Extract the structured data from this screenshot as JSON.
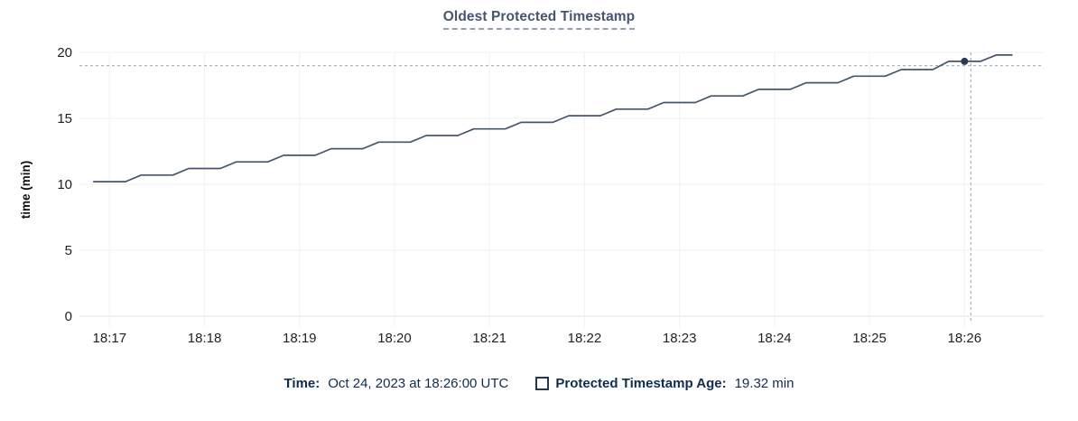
{
  "title": "Oldest Protected Timestamp",
  "chart_data": {
    "type": "line",
    "title": "Oldest Protected Timestamp",
    "xlabel": "",
    "ylabel": "time (min)",
    "ylim": [
      0,
      20
    ],
    "y_ticks": [
      0,
      5,
      10,
      15,
      20
    ],
    "x_ticks": [
      "18:17",
      "18:18",
      "18:19",
      "18:20",
      "18:21",
      "18:22",
      "18:23",
      "18:24",
      "18:25",
      "18:26"
    ],
    "x_domain": [
      "18:16:41",
      "18:26:50"
    ],
    "grid": true,
    "legend_position": "bottom",
    "series": [
      {
        "name": "Protected Timestamp Age",
        "unit": "min",
        "points": [
          [
            "18:16:50",
            10.2
          ],
          [
            "18:17:00",
            10.2
          ],
          [
            "18:17:10",
            10.2
          ],
          [
            "18:17:20",
            10.7
          ],
          [
            "18:17:30",
            10.7
          ],
          [
            "18:17:40",
            10.7
          ],
          [
            "18:17:50",
            11.2
          ],
          [
            "18:18:00",
            11.2
          ],
          [
            "18:18:10",
            11.2
          ],
          [
            "18:18:20",
            11.7
          ],
          [
            "18:18:30",
            11.7
          ],
          [
            "18:18:40",
            11.7
          ],
          [
            "18:18:50",
            12.2
          ],
          [
            "18:19:00",
            12.2
          ],
          [
            "18:19:10",
            12.2
          ],
          [
            "18:19:20",
            12.7
          ],
          [
            "18:19:30",
            12.7
          ],
          [
            "18:19:40",
            12.7
          ],
          [
            "18:19:50",
            13.2
          ],
          [
            "18:20:00",
            13.2
          ],
          [
            "18:20:10",
            13.2
          ],
          [
            "18:20:20",
            13.7
          ],
          [
            "18:20:30",
            13.7
          ],
          [
            "18:20:40",
            13.7
          ],
          [
            "18:20:50",
            14.2
          ],
          [
            "18:21:00",
            14.2
          ],
          [
            "18:21:10",
            14.2
          ],
          [
            "18:21:20",
            14.7
          ],
          [
            "18:21:30",
            14.7
          ],
          [
            "18:21:40",
            14.7
          ],
          [
            "18:21:50",
            15.2
          ],
          [
            "18:22:00",
            15.2
          ],
          [
            "18:22:10",
            15.2
          ],
          [
            "18:22:20",
            15.7
          ],
          [
            "18:22:30",
            15.7
          ],
          [
            "18:22:40",
            15.7
          ],
          [
            "18:22:50",
            16.2
          ],
          [
            "18:23:00",
            16.2
          ],
          [
            "18:23:10",
            16.2
          ],
          [
            "18:23:20",
            16.7
          ],
          [
            "18:23:30",
            16.7
          ],
          [
            "18:23:40",
            16.7
          ],
          [
            "18:23:50",
            17.2
          ],
          [
            "18:24:00",
            17.2
          ],
          [
            "18:24:10",
            17.2
          ],
          [
            "18:24:20",
            17.7
          ],
          [
            "18:24:30",
            17.7
          ],
          [
            "18:24:40",
            17.7
          ],
          [
            "18:24:50",
            18.2
          ],
          [
            "18:25:00",
            18.2
          ],
          [
            "18:25:10",
            18.2
          ],
          [
            "18:25:20",
            18.7
          ],
          [
            "18:25:30",
            18.7
          ],
          [
            "18:25:40",
            18.7
          ],
          [
            "18:25:50",
            19.32
          ],
          [
            "18:26:00",
            19.32
          ],
          [
            "18:26:10",
            19.32
          ],
          [
            "18:26:20",
            19.8
          ],
          [
            "18:26:30",
            19.8
          ]
        ]
      }
    ],
    "highlight_point": {
      "time": "18:26:00",
      "value": 19.32
    },
    "crosshair": {
      "time": "18:26:04",
      "value": 19.0
    }
  },
  "tooltip": {
    "time_label": "Time:",
    "time_value": "Oct 24, 2023 at 18:26:00 UTC",
    "age_label": "Protected Timestamp Age:",
    "age_value": "19.32 min"
  },
  "icons": {
    "legend_swatch": "empty-square-swatch"
  },
  "colors": {
    "line": "#46556e",
    "dot": "#2d3b52",
    "crosshair": "#a4b7c2",
    "title": "#47566f",
    "title_underline": "#92a1b8",
    "footer_text": "#102d4d",
    "grid": "#eef0f1",
    "grid_vertical": "#f1f2f3",
    "axis_line": "#e2e4e6",
    "tick_text": "#1d2125",
    "legend_swatch_border": "#24374f",
    "background": "#ffffff"
  }
}
